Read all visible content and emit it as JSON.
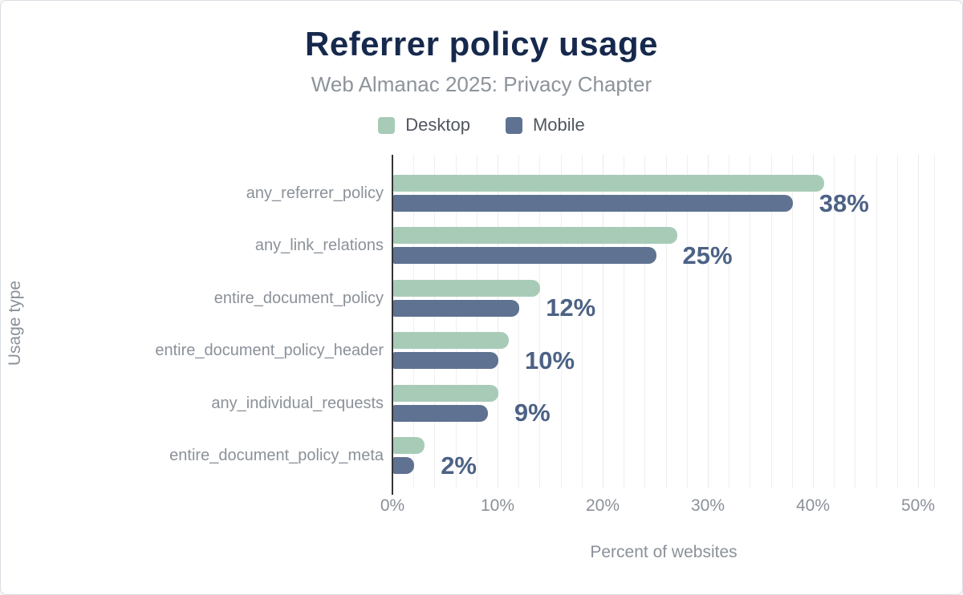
{
  "chart_data": {
    "type": "bar",
    "orientation": "horizontal",
    "title": "Referrer policy usage",
    "subtitle": "Web Almanac 2025: Privacy Chapter",
    "xlabel": "Percent of websites",
    "ylabel": "Usage type",
    "categories": [
      "any_referrer_policy",
      "any_link_relations",
      "entire_document_policy",
      "entire_document_policy_header",
      "any_individual_requests",
      "entire_document_policy_meta"
    ],
    "series": [
      {
        "name": "Desktop",
        "color": "#a8cbb8",
        "values": [
          41,
          27,
          14,
          11,
          10,
          3
        ]
      },
      {
        "name": "Mobile",
        "color": "#5f7291",
        "values": [
          38,
          25,
          12,
          10,
          9,
          2
        ]
      }
    ],
    "value_labels": [
      "38%",
      "25%",
      "12%",
      "10%",
      "9%",
      "2%"
    ],
    "value_labels_series": "Mobile",
    "xlim": [
      0,
      50
    ],
    "xticks": [
      0,
      10,
      20,
      30,
      40,
      50
    ],
    "xtick_labels": [
      "0%",
      "10%",
      "20%",
      "30%",
      "40%",
      "50%"
    ],
    "grid": "vertical minor gridlines every 2%",
    "legend_position": "top-center"
  },
  "colors": {
    "title": "#16294d",
    "subtitle": "#8d939b",
    "axis_text": "#8b9199",
    "legend_text": "#50565f",
    "desktop_bar": "#a8cbb8",
    "mobile_bar": "#5f7291",
    "value_label": "#4c6285",
    "gridline": "#efefef",
    "axis_line": "#343434",
    "background": "#ffffff"
  }
}
